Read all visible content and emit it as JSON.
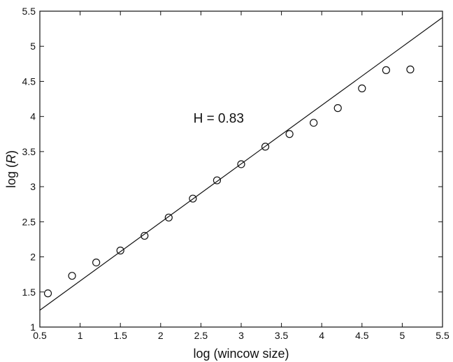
{
  "chart_data": {
    "type": "scatter",
    "title": "",
    "xlabel": "log (wincow size)",
    "ylabel_prefix": "log (",
    "ylabel_var": "R",
    "ylabel_suffix": ")",
    "xlim": [
      0.5,
      5.5
    ],
    "ylim": [
      1,
      5.5
    ],
    "xticks": [
      "0.5",
      "1",
      "1.5",
      "2",
      "2.5",
      "3",
      "3.5",
      "4",
      "4.5",
      "5",
      "5.5"
    ],
    "yticks": [
      "1",
      "1.5",
      "2",
      "2.5",
      "3",
      "3.5",
      "4",
      "4.5",
      "5",
      "5.5"
    ],
    "grid": false,
    "points": {
      "x": [
        0.6,
        0.9,
        1.2,
        1.5,
        1.8,
        2.1,
        2.4,
        2.7,
        3.0,
        3.3,
        3.6,
        3.9,
        4.2,
        4.5,
        4.8,
        5.1
      ],
      "y": [
        1.48,
        1.73,
        1.92,
        2.09,
        2.3,
        2.56,
        2.83,
        3.09,
        3.32,
        3.57,
        3.75,
        3.91,
        4.12,
        4.4,
        4.66,
        4.67
      ]
    },
    "fit_line": {
      "x": [
        0.5,
        5.5
      ],
      "y": [
        1.24,
        5.41
      ]
    },
    "annotation": {
      "text": "H = 0.83",
      "x": 2.72,
      "y": 3.98
    },
    "line_color": "#111111",
    "marker_color": "#111111"
  }
}
